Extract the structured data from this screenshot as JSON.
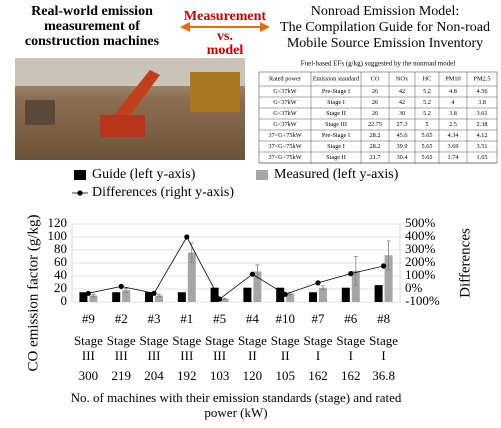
{
  "top": {
    "left_title": [
      "Real-world emission",
      "measurement of",
      "construction machines"
    ],
    "compare": {
      "left": "Measurement",
      "middle": "vs.",
      "right": "model"
    },
    "right_title": [
      "Nonroad Emission Model:",
      "The Compilation Guide for Non-road",
      "Mobile Source Emission Inventory"
    ],
    "table_caption": "Fuel-based EFs (g/kg) suggested by the nonroad model",
    "table": {
      "header": [
        "Rated power",
        "Emission standard",
        "CO",
        "NOx",
        "HC",
        "PM10",
        "PM2.5"
      ],
      "rows": [
        [
          "G<37kW",
          "Pre-Stage I",
          26,
          42,
          5.2,
          4.8,
          4.56
        ],
        [
          "G<37kW",
          "Stage I",
          26,
          42,
          5.2,
          4,
          3.8
        ],
        [
          "G<37kW",
          "Stage II",
          26,
          30,
          5.2,
          3.8,
          3.61
        ],
        [
          "G<37kW",
          "Stage III",
          22.75,
          27.3,
          5,
          2.5,
          2.38
        ],
        [
          "37<G<75kW",
          "Pre-Stage I",
          28.2,
          45.6,
          5.65,
          4.34,
          4.12
        ],
        [
          "37<G<75kW",
          "Stage I",
          28.2,
          39.9,
          5.65,
          3.69,
          3.51
        ],
        [
          "37<G<75kW",
          "Stage II",
          21.7,
          30.4,
          5.65,
          1.74,
          1.65
        ]
      ]
    }
  },
  "chart_data": {
    "type": "bar",
    "categories": [
      "#9",
      "#2",
      "#3",
      "#1",
      "#5",
      "#4",
      "#10",
      "#7",
      "#6",
      "#8"
    ],
    "stages": [
      "Stage III",
      "Stage III",
      "Stage III",
      "Stage III",
      "Stage III",
      "Stage II",
      "Stage II",
      "Stage I",
      "Stage I",
      "Stage I"
    ],
    "power": [
      300,
      219,
      204,
      192,
      103,
      120,
      105,
      162,
      162,
      36.8
    ],
    "series": [
      {
        "name": "Guide (left y-axis)",
        "color": "#000000",
        "values": [
          15,
          15,
          15,
          15,
          22,
          22,
          22,
          15,
          22,
          26
        ]
      },
      {
        "name": "Measured (left y-axis)",
        "color": "#a6a6a6",
        "values": [
          10,
          18,
          10,
          76,
          5,
          47,
          13,
          22,
          48,
          72
        ],
        "errors": [
          2,
          3,
          2,
          15,
          1,
          10,
          2,
          3,
          22,
          22
        ]
      },
      {
        "name": "Differences (right y-axis)",
        "color": "#000000",
        "axis": "y2",
        "type": "line",
        "values": [
          -33,
          20,
          -33,
          400,
          -77,
          114,
          -41,
          47,
          118,
          177
        ]
      }
    ],
    "y_label": "CO emission factor (g/kg)",
    "y2_label": "Differences",
    "x_label": [
      "No. of machines with their emission standards (stage) and rated",
      "power (kW)"
    ],
    "ylim": [
      0,
      120
    ],
    "yticks": [
      0,
      20,
      40,
      60,
      80,
      100,
      120
    ],
    "y2lim": [
      -100,
      500
    ],
    "y2ticks": [
      {
        "value": -100,
        "label": "-100%"
      },
      {
        "value": 0,
        "label": "0%"
      },
      {
        "value": 100,
        "label": "100%"
      },
      {
        "value": 200,
        "label": "200%"
      },
      {
        "value": 300,
        "label": "300%"
      },
      {
        "value": 400,
        "label": "400%"
      },
      {
        "value": 500,
        "label": "500%"
      }
    ],
    "grid": true
  }
}
